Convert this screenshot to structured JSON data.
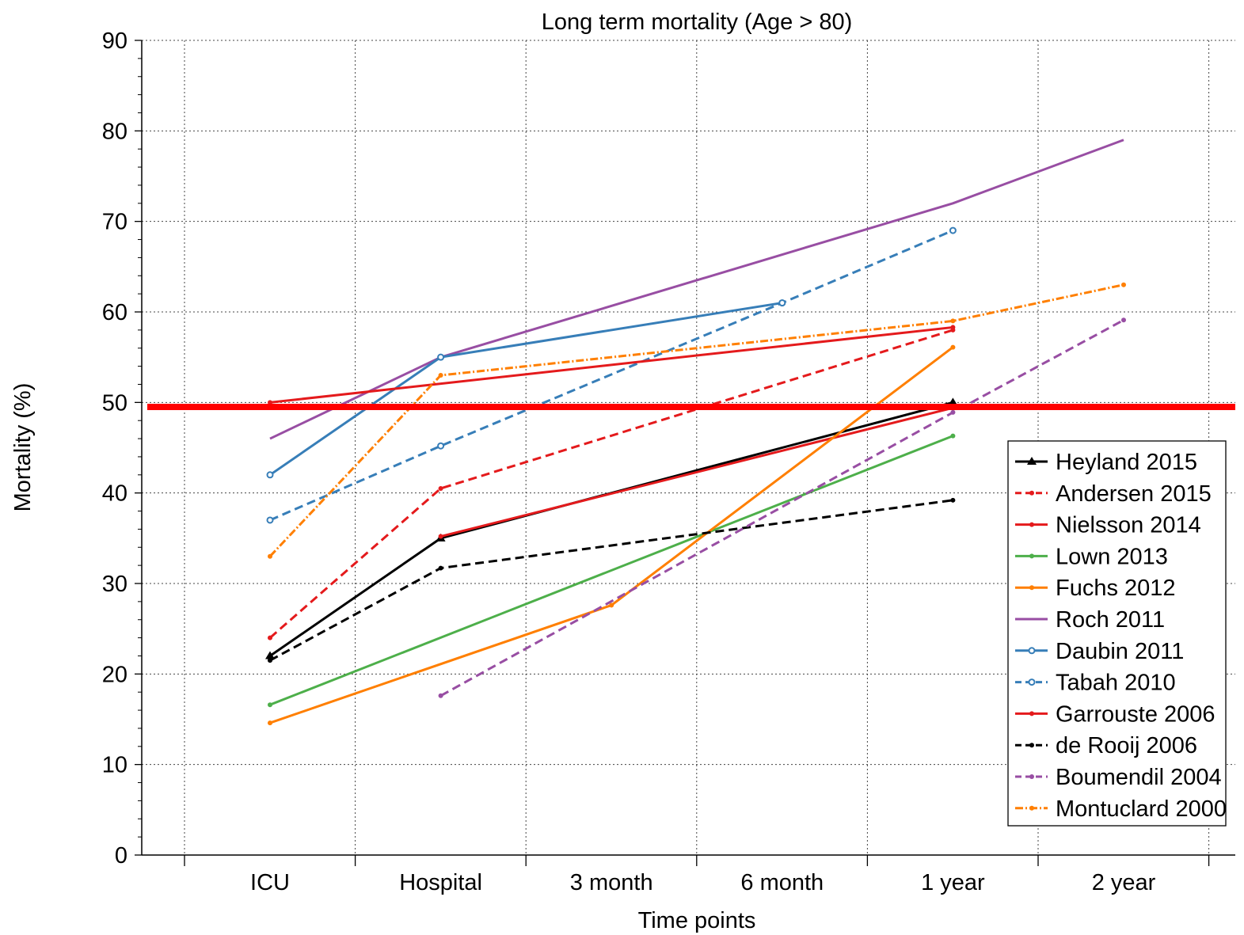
{
  "chart_data": {
    "type": "line",
    "title": "Long term mortality (Age > 80)",
    "xlabel": "Time points",
    "ylabel": "Mortality (%)",
    "categories": [
      "ICU",
      "Hospital",
      "3 month",
      "6 month",
      "1 year",
      "2 year"
    ],
    "yticks": [
      "0",
      "10",
      "20",
      "30",
      "40",
      "50",
      "60",
      "70",
      "80",
      "90"
    ],
    "ylim": [
      0,
      90
    ],
    "grid": true,
    "legend_position": "lower-right",
    "reference_line": {
      "y": 49.5,
      "color": "#ff0000"
    },
    "series": [
      {
        "name": "Heyland 2015",
        "color": "#000000",
        "dash": "solid",
        "marker": "triangle",
        "x": [
          0,
          1,
          4
        ],
        "y": [
          22,
          35,
          50
        ]
      },
      {
        "name": "Andersen 2015",
        "color": "#e41a1c",
        "dash": "dashed",
        "marker": "dot",
        "x": [
          0,
          1,
          4
        ],
        "y": [
          24,
          40.5,
          58
        ]
      },
      {
        "name": "Nielsson 2014",
        "color": "#e41a1c",
        "dash": "solid",
        "marker": "dot",
        "x": [
          1,
          4
        ],
        "y": [
          35.2,
          49.4
        ]
      },
      {
        "name": "Lown 2013",
        "color": "#4daf4a",
        "dash": "solid",
        "marker": "dot",
        "x": [
          0,
          4
        ],
        "y": [
          16.6,
          46.3
        ]
      },
      {
        "name": "Fuchs 2012",
        "color": "#ff7f00",
        "dash": "solid",
        "marker": "dot",
        "x": [
          0,
          2,
          4
        ],
        "y": [
          14.6,
          27.6,
          56.1
        ]
      },
      {
        "name": "Roch 2011",
        "color": "#984ea3",
        "dash": "solid",
        "marker": "none",
        "x": [
          0,
          1,
          4,
          5
        ],
        "y": [
          46,
          55,
          72,
          79
        ]
      },
      {
        "name": "Daubin 2011",
        "color": "#377eb8",
        "dash": "solid",
        "marker": "circle",
        "x": [
          0,
          1,
          3
        ],
        "y": [
          42,
          55,
          61
        ]
      },
      {
        "name": "Tabah 2010",
        "color": "#377eb8",
        "dash": "dashed",
        "marker": "circle",
        "x": [
          0,
          1,
          3,
          4
        ],
        "y": [
          37,
          45.2,
          61,
          69
        ]
      },
      {
        "name": "Garrouste 2006",
        "color": "#e41a1c",
        "dash": "solid",
        "marker": "dot",
        "x": [
          0,
          4
        ],
        "y": [
          50,
          58.3
        ]
      },
      {
        "name": "de Rooij 2006",
        "color": "#000000",
        "dash": "dashed",
        "marker": "dot",
        "x": [
          0,
          1,
          4
        ],
        "y": [
          21.5,
          31.7,
          39.2
        ]
      },
      {
        "name": "Boumendil 2004",
        "color": "#984ea3",
        "dash": "dashed",
        "marker": "dot",
        "x": [
          1,
          4,
          5
        ],
        "y": [
          17.6,
          48.9,
          59.1
        ]
      },
      {
        "name": "Montuclard 2000",
        "color": "#ff7f00",
        "dash": "dashdot",
        "marker": "dot",
        "x": [
          0,
          1,
          4,
          5
        ],
        "y": [
          33,
          53,
          59,
          63
        ]
      }
    ]
  }
}
